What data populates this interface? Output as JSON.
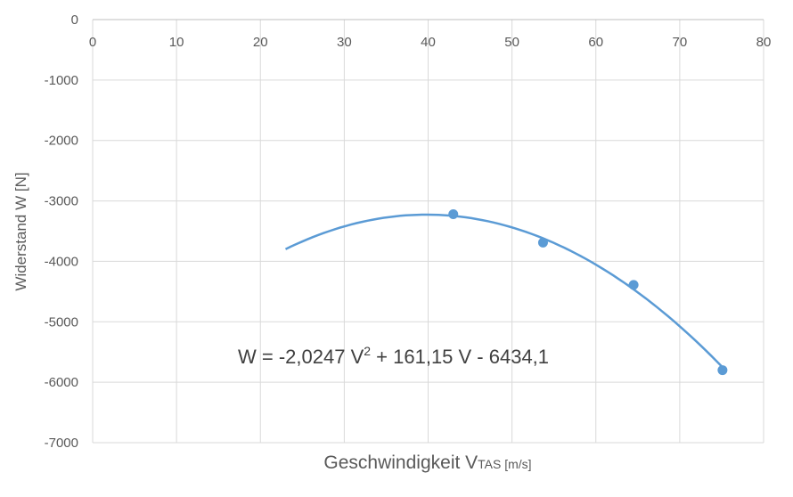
{
  "chart_data": {
    "type": "scatter",
    "title": "",
    "xlabel": "Geschwindigkeit V",
    "xlabel_sub": "TAS [m/s]",
    "ylabel": "Widerstand W [N]",
    "xlim": [
      0,
      80
    ],
    "ylim": [
      -7000,
      0
    ],
    "x_ticks": [
      0,
      10,
      20,
      30,
      40,
      50,
      60,
      70,
      80
    ],
    "y_ticks": [
      0,
      -1000,
      -2000,
      -3000,
      -4000,
      -5000,
      -6000,
      -7000
    ],
    "x_tick_position": "top",
    "grid": true,
    "series": [
      {
        "points": [
          {
            "x": 43.0,
            "y": -3220
          },
          {
            "x": 53.7,
            "y": -3690
          },
          {
            "x": 64.5,
            "y": -4390
          },
          {
            "x": 75.1,
            "y": -5800
          }
        ],
        "color": "#5b9bd5"
      }
    ],
    "trendline": {
      "type": "polynomial",
      "order": 2,
      "coefficients": {
        "a": -2.0247,
        "b": 161.15,
        "c": -6434.1
      },
      "x_range": [
        23,
        75.1
      ],
      "color": "#5b9bd5"
    },
    "annotation": {
      "text_main": "W = -2,0247 V",
      "superscript": "2",
      "text_rest": " + 161,15 V - 6434,1"
    }
  }
}
